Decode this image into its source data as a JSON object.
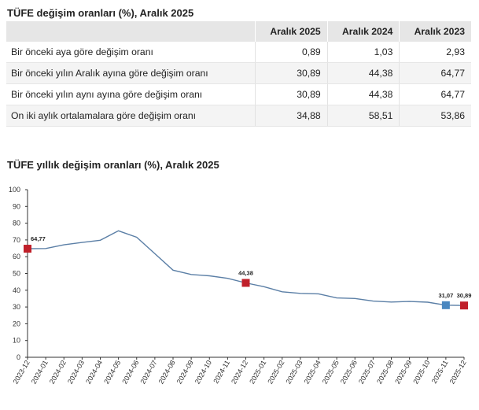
{
  "table": {
    "title": "TÜFE değişim oranları (%), Aralık 2025",
    "headers": [
      "",
      "Aralık 2025",
      "Aralık 2024",
      "Aralık 2023"
    ],
    "rows": [
      {
        "label": "Bir önceki aya göre değişim oranı",
        "v2025": "0,89",
        "v2024": "1,03",
        "v2023": "2,93"
      },
      {
        "label": "Bir önceki yılın Aralık ayına göre değişim oranı",
        "v2025": "30,89",
        "v2024": "44,38",
        "v2023": "64,77"
      },
      {
        "label": "Bir önceki yılın aynı ayına göre değişim oranı",
        "v2025": "30,89",
        "v2024": "44,38",
        "v2023": "64,77"
      },
      {
        "label": "On iki aylık ortalamalara göre değişim oranı",
        "v2025": "34,88",
        "v2024": "58,51",
        "v2023": "53,86"
      }
    ]
  },
  "chart_data": {
    "type": "line",
    "title": "TÜFE yıllık değişim oranları (%), Aralık 2025",
    "xlabel": "",
    "ylabel": "",
    "ylim": [
      0,
      100
    ],
    "yticks": [
      0,
      10,
      20,
      30,
      40,
      50,
      60,
      70,
      80,
      90,
      100
    ],
    "grid": false,
    "x": [
      "2023-12",
      "2024-01",
      "2024-02",
      "2024-03",
      "2024-04",
      "2024-05",
      "2024-06",
      "2024-07",
      "2024-08",
      "2024-09",
      "2024-10",
      "2024-11",
      "2024-12",
      "2025-01",
      "2025-02",
      "2025-03",
      "2025-04",
      "2025-05",
      "2025-06",
      "2025-07",
      "2025-08",
      "2025-09",
      "2025-10",
      "2025-11",
      "2025-12"
    ],
    "series": [
      {
        "values": [
          64.77,
          64.86,
          67.07,
          68.5,
          69.8,
          75.45,
          71.6,
          61.78,
          51.97,
          49.38,
          48.58,
          47.09,
          44.38,
          42.12,
          39.05,
          38.1,
          37.86,
          35.41,
          35.05,
          33.52,
          32.95,
          33.29,
          32.87,
          31.07,
          30.89
        ]
      }
    ],
    "color": "#5b7fa6",
    "markers": [
      {
        "index": 0,
        "label": "64,77",
        "color": "#c0202a"
      },
      {
        "index": 12,
        "label": "44,38",
        "color": "#c0202a"
      },
      {
        "index": 23,
        "label": "31,07",
        "color": "#4a87c0"
      },
      {
        "index": 24,
        "label": "30,89",
        "color": "#c0202a"
      }
    ]
  }
}
